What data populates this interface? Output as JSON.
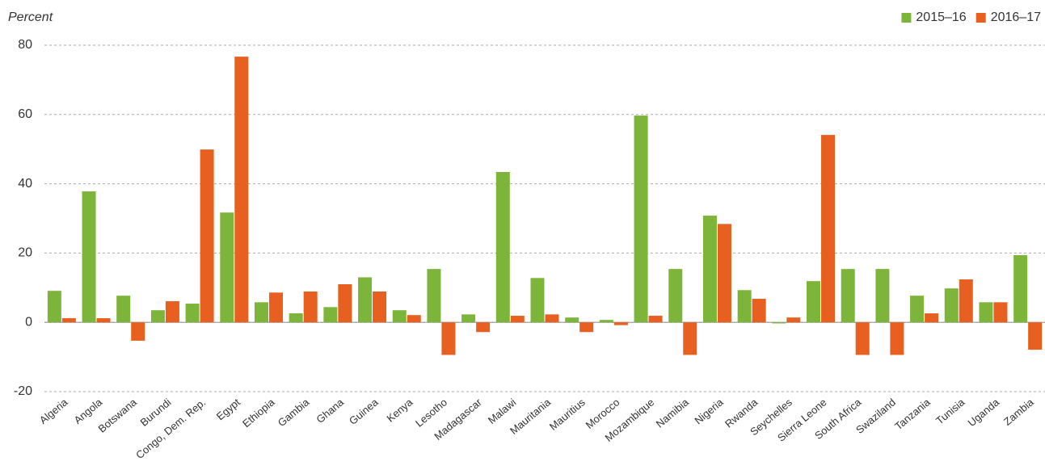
{
  "chart_data": {
    "type": "bar",
    "y_label": "Percent",
    "categories": [
      "Algeria",
      "Angola",
      "Botswana",
      "Burundi",
      "Congo, Dem. Rep.",
      "Egypt",
      "Ethiopia",
      "Gambia",
      "Ghana",
      "Guinea",
      "Kenya",
      "Lesotho",
      "Madagascar",
      "Malawi",
      "Mauritania",
      "Mauritius",
      "Morocco",
      "Mozambique",
      "Namibia",
      "Nigeria",
      "Rwanda",
      "Seychelles",
      "Sierra Leone",
      "South Africa",
      "Swaziland",
      "Tanzania",
      "Tunisia",
      "Uganda",
      "Zambia"
    ],
    "series": [
      {
        "name": "2015–16",
        "color": "#7db43a",
        "values": [
          9.1,
          37.8,
          7.7,
          3.5,
          5.4,
          31.7,
          5.8,
          2.6,
          4.4,
          13,
          3.5,
          15.4,
          2.3,
          43.4,
          12.8,
          1.4,
          0.7,
          59.7,
          15.4,
          30.8,
          9.3,
          -0.3,
          11.9,
          15.4,
          15.4,
          7.7,
          9.8,
          5.8,
          19.4
        ]
      },
      {
        "name": "2016–17",
        "color": "#e8601f",
        "values": [
          1.2,
          1.2,
          -5.3,
          6.1,
          49.9,
          76.7,
          8.6,
          8.9,
          11,
          8.9,
          2.1,
          -9.4,
          -2.8,
          1.9,
          2.3,
          -2.8,
          -0.8,
          1.9,
          -9.4,
          28.4,
          6.8,
          1.4,
          54.1,
          -9.4,
          -9.4,
          2.6,
          12.4,
          5.8,
          -7.9
        ]
      }
    ],
    "ylim": [
      -20,
      80
    ],
    "yticks": [
      -20,
      0,
      20,
      40,
      60,
      80
    ],
    "grid": true,
    "legend": "top-right"
  }
}
